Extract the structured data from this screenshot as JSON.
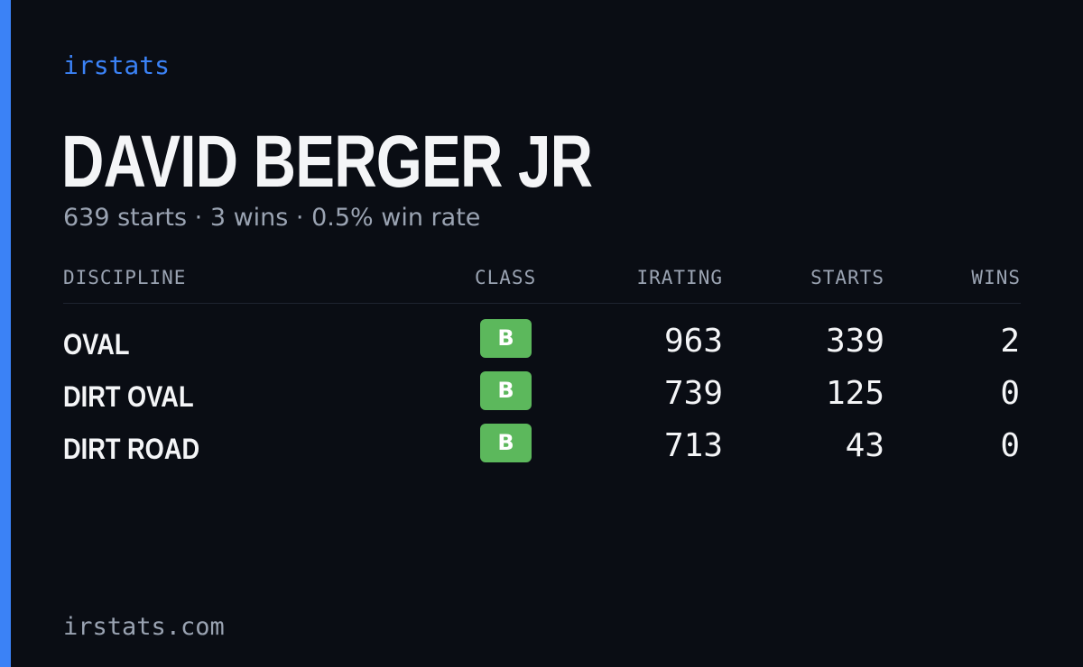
{
  "brand": "irstats",
  "driver": {
    "name": "DAVID BERGER JR",
    "summary": "639 starts · 3 wins · 0.5% win rate"
  },
  "table": {
    "headers": {
      "discipline": "DISCIPLINE",
      "class": "CLASS",
      "irating": "IRATING",
      "starts": "STARTS",
      "wins": "WINS"
    },
    "rows": [
      {
        "discipline": "OVAL",
        "class": "B",
        "irating": "963",
        "starts": "339",
        "wins": "2"
      },
      {
        "discipline": "DIRT OVAL",
        "class": "B",
        "irating": "739",
        "starts": "125",
        "wins": "0"
      },
      {
        "discipline": "DIRT ROAD",
        "class": "B",
        "irating": "713",
        "starts": "43",
        "wins": "0"
      }
    ]
  },
  "footer": "irstats.com",
  "colors": {
    "background": "#0a0d14",
    "accent": "#3b82f6",
    "class_b": "#5cb85c",
    "muted_text": "#9aa3b2",
    "primary_text": "#f4f5f7"
  }
}
